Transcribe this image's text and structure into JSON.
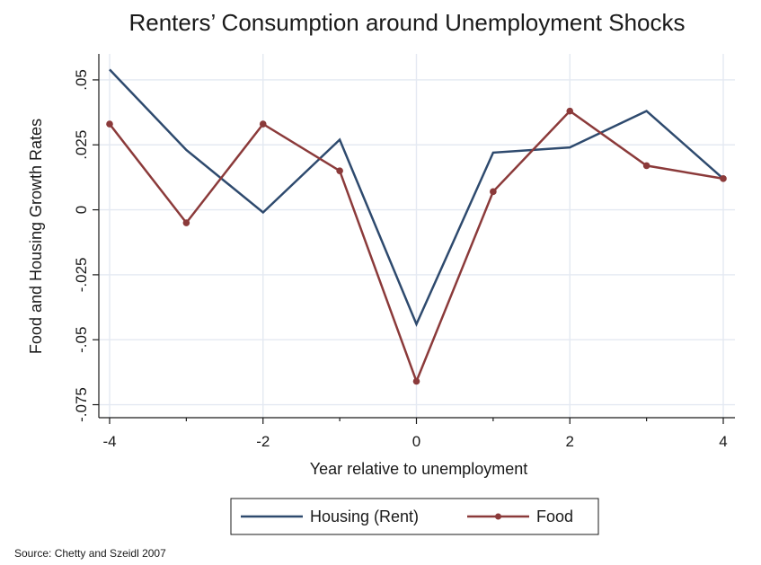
{
  "chart_data": {
    "type": "line",
    "title": "Renters’ Consumption around Unemployment Shocks",
    "xlabel": "Year relative to unemployment",
    "ylabel": "Food and Housing Growth Rates",
    "source": "Source: Chetty and Szeidl 2007",
    "x": [
      -4,
      -3,
      -2,
      -1,
      0,
      1,
      2,
      3,
      4
    ],
    "xlim": [
      -4,
      4
    ],
    "ylim": [
      -0.08,
      0.06
    ],
    "x_ticks": [
      -4,
      -2,
      0,
      2,
      4
    ],
    "x_tick_labels": [
      "-4",
      "-2",
      "0",
      "2",
      "4"
    ],
    "x_minor_ticks": [
      -3,
      -1,
      1,
      3
    ],
    "y_ticks": [
      0.05,
      0.025,
      0,
      -0.025,
      -0.05,
      -0.075
    ],
    "y_tick_labels": [
      ".05",
      ".025",
      "0",
      "-.025",
      "-.05",
      "-.075"
    ],
    "grid": true,
    "legend_position": "bottom",
    "series": [
      {
        "name": "Housing (Rent)",
        "color": "#2e4a6e",
        "markers": false,
        "values": [
          0.054,
          0.023,
          -0.001,
          0.027,
          -0.044,
          0.022,
          0.024,
          0.038,
          0.012
        ]
      },
      {
        "name": "Food",
        "color": "#8b3a3a",
        "markers": true,
        "values": [
          0.033,
          -0.005,
          0.033,
          0.015,
          -0.066,
          0.007,
          0.038,
          0.017,
          0.012
        ]
      }
    ]
  }
}
